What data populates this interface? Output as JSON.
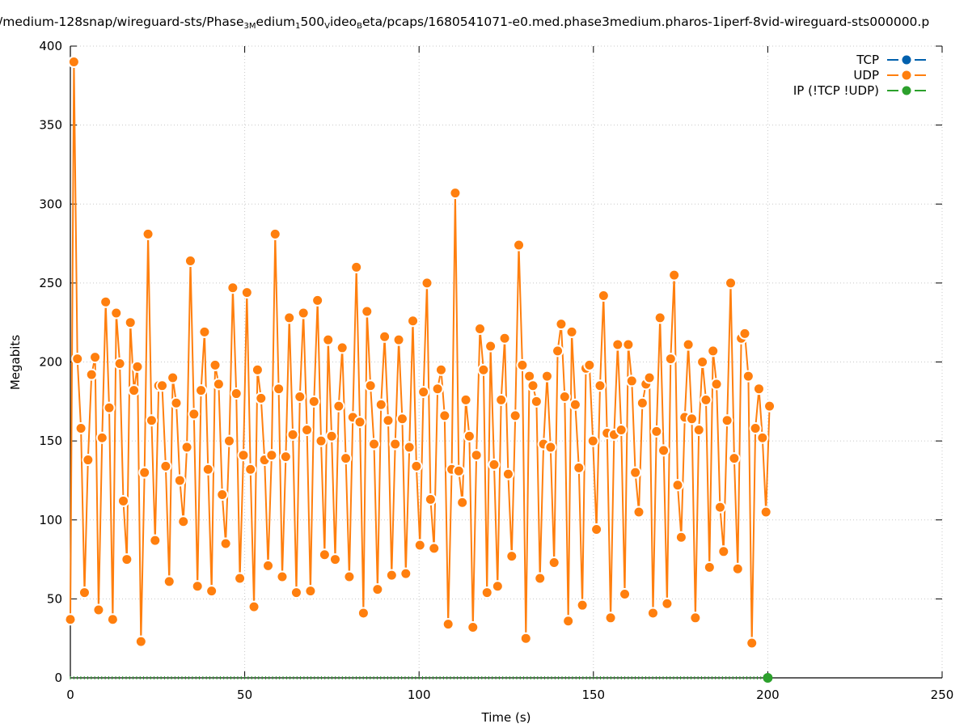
{
  "chart_data": {
    "type": "line",
    "title_parts": [
      {
        "t": "/medium-128snap/wireguard-sts/Phase"
      },
      {
        "t": "3M",
        "sub": true
      },
      {
        "t": "edium"
      },
      {
        "t": "1",
        "sub": true
      },
      {
        "t": "500"
      },
      {
        "t": "V",
        "sub": true
      },
      {
        "t": "ideo"
      },
      {
        "t": "B",
        "sub": true
      },
      {
        "t": "eta/pcaps/1680541071-e0.med.phase3medium.pharos-1iperf-8vid-wireguard-sts000000.p"
      }
    ],
    "xlabel": "Time (s)",
    "ylabel": "Megabits",
    "xlim": [
      0,
      250
    ],
    "ylim": [
      0,
      400
    ],
    "xticks": [
      "0",
      "50",
      "100",
      "150",
      "200",
      "250"
    ],
    "yticks": [
      "0",
      "50",
      "100",
      "150",
      "200",
      "250",
      "300",
      "350",
      "400"
    ],
    "grid": true,
    "legend_position": "top-right",
    "series": [
      {
        "name": "TCP",
        "color": "#0060ad",
        "x": [],
        "values": []
      },
      {
        "name": "UDP",
        "color": "#ff7f0e",
        "x_start": 0,
        "x_end": 200.5,
        "values": [
          37,
          390,
          202,
          158,
          54,
          138,
          192,
          203,
          43,
          152,
          238,
          171,
          37,
          231,
          199,
          112,
          75,
          225,
          182,
          197,
          23,
          130,
          281,
          163,
          87,
          185,
          185,
          134,
          61,
          190,
          174,
          125,
          99,
          146,
          264,
          167,
          58,
          182,
          219,
          132,
          55,
          198,
          186,
          116,
          85,
          150,
          247,
          180,
          63,
          141,
          244,
          132,
          45,
          195,
          177,
          138,
          71,
          141,
          281,
          183,
          64,
          140,
          228,
          154,
          54,
          178,
          231,
          157,
          55,
          175,
          239,
          150,
          78,
          214,
          153,
          75,
          172,
          209,
          139,
          64,
          165,
          260,
          162,
          41,
          232,
          185,
          148,
          56,
          173,
          216,
          163,
          65,
          148,
          214,
          164,
          66,
          146,
          226,
          134,
          84,
          181,
          250,
          113,
          82,
          183,
          195,
          166,
          34,
          132,
          307,
          131,
          111,
          176,
          153,
          32,
          141,
          221,
          195,
          54,
          210,
          135,
          58,
          176,
          215,
          129,
          77,
          166,
          274,
          198,
          25,
          191,
          185,
          175,
          63,
          148,
          191,
          146,
          73,
          207,
          224,
          178,
          36,
          219,
          173,
          133,
          46,
          196,
          198,
          150,
          94,
          185,
          242,
          155,
          38,
          154,
          211,
          157,
          53,
          211,
          188,
          130,
          105,
          174,
          186,
          190,
          41,
          156,
          228,
          144,
          47,
          202,
          255,
          122,
          89,
          165,
          211,
          164,
          38,
          157,
          200,
          176,
          70,
          207,
          186,
          108,
          80,
          163,
          250,
          139,
          69,
          215,
          218,
          191,
          22,
          158,
          183,
          152,
          105,
          172
        ]
      },
      {
        "name": "IP (!TCP  !UDP)",
        "color": "#2ca02c",
        "x": [
          200
        ],
        "values": [
          0
        ]
      }
    ]
  }
}
